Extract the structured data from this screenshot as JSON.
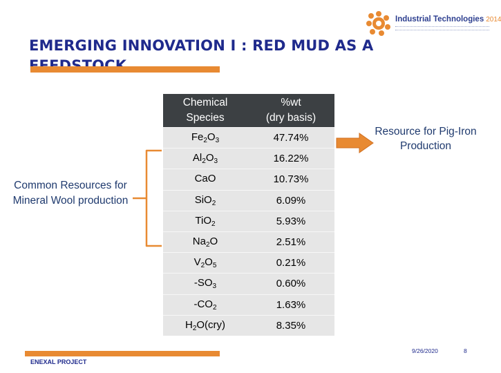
{
  "title": "EMERGING INNOVATION I : RED MUD AS A FEEDSTOCK",
  "logo": {
    "name": "Industrial Technologies",
    "year": "2014"
  },
  "table": {
    "headers": [
      {
        "line1": "Chemical",
        "line2": "Species"
      },
      {
        "line1": "%wt",
        "line2": "(dry basis)"
      }
    ],
    "rows": [
      {
        "species": {
          "base": "Fe",
          "sub1": "2",
          "mid": "O",
          "sub2": "3"
        },
        "value": "47.74%"
      },
      {
        "species": {
          "base": "Al",
          "sub1": "2",
          "mid": "O",
          "sub2": "3"
        },
        "value": "16.22%"
      },
      {
        "species": {
          "base": "CaO",
          "sub1": "",
          "mid": "",
          "sub2": ""
        },
        "value": "10.73%"
      },
      {
        "species": {
          "base": "SiO",
          "sub1": "2",
          "mid": "",
          "sub2": ""
        },
        "value": "6.09%"
      },
      {
        "species": {
          "base": "TiO",
          "sub1": "2",
          "mid": "",
          "sub2": ""
        },
        "value": "5.93%"
      },
      {
        "species": {
          "base": "Na",
          "sub1": "2",
          "mid": "O",
          "sub2": ""
        },
        "value": "2.51%"
      },
      {
        "species": {
          "base": "V",
          "sub1": "2",
          "mid": "O",
          "sub2": "5"
        },
        "value": "0.21%"
      },
      {
        "species": {
          "base": "-SO",
          "sub1": "3",
          "mid": "",
          "sub2": ""
        },
        "value": "0.60%"
      },
      {
        "species": {
          "base": "-CO",
          "sub1": "2",
          "mid": "",
          "sub2": ""
        },
        "value": "1.63%"
      },
      {
        "species": {
          "base": "H",
          "sub1": "2",
          "mid": "O(cry)",
          "sub2": ""
        },
        "value": "8.35%"
      }
    ]
  },
  "annotations": {
    "left": "Common Resources for Mineral Wool production",
    "right": "Resource for Pig-Iron Production"
  },
  "footer": {
    "project": "ENEXAL PROJECT",
    "date": "9/26/2020",
    "page": "8"
  },
  "colors": {
    "title": "#1f2a8c",
    "accent": "#e88a32",
    "table_header": "#3c4043",
    "table_cell": "#e6e6e6",
    "annotation": "#1f3a6e"
  }
}
